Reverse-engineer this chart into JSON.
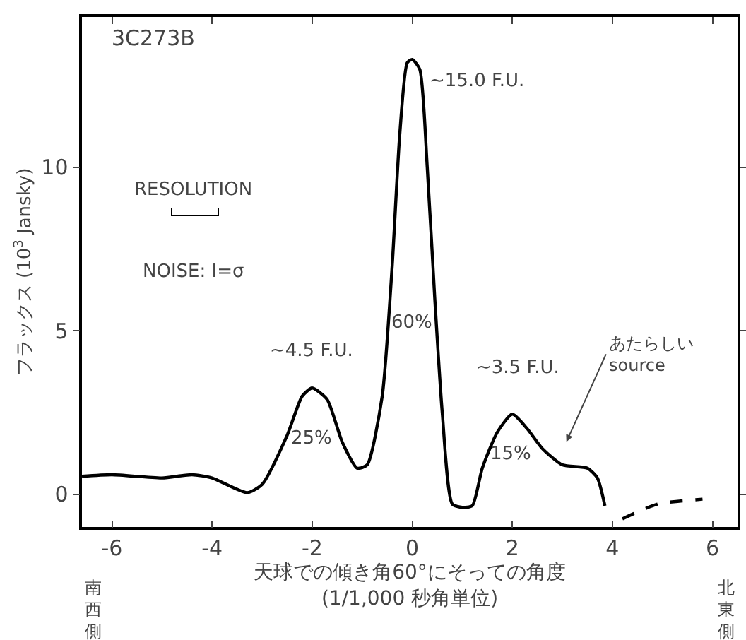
{
  "chart_data": {
    "type": "line",
    "title": "3C273B",
    "xlabel": "天球での傾き角60°にそっての角度\n(1/1,000 秒角単位)",
    "ylabel": "フラックス (10$^{3}$ Jansky)",
    "series": [
      {
        "color": "#000000",
        "line_style": "solid",
        "x": [
          -6.6,
          -6,
          -5,
          -4.4,
          -4,
          -3.3,
          -3,
          -2.5,
          -2.2,
          -2,
          -1.7,
          -1.4,
          -1.1,
          -0.9,
          -0.6,
          -0.4,
          -0.25,
          -0.1,
          0,
          0.15,
          0.3,
          0.45,
          0.6,
          0.8,
          1.0,
          1.2,
          1.4,
          1.7,
          2.0,
          2.3,
          2.6,
          3.0,
          3.5,
          3.7,
          3.85
        ],
        "values": [
          0.55,
          0.6,
          0.5,
          0.6,
          0.5,
          0.05,
          0.3,
          1.8,
          3.0,
          3.25,
          2.9,
          1.6,
          0.8,
          0.9,
          3,
          7,
          11,
          13.2,
          13.3,
          13.0,
          10,
          6,
          2.5,
          -0.3,
          -0.4,
          -0.35,
          0.8,
          1.9,
          2.45,
          2.0,
          1.4,
          0.9,
          0.8,
          0.5,
          -0.35
        ]
      },
      {
        "color": "#000000",
        "line_style": "dashed",
        "x": [
          4.2,
          4.9,
          5.8
        ],
        "values": [
          -0.75,
          -0.3,
          -0.15
        ]
      }
    ],
    "xlim": [
      -6.6,
      6.5
    ],
    "ylim": [
      -1,
      14.6
    ],
    "xticks": [
      -6,
      -4,
      -2,
      0,
      2,
      4,
      6
    ],
    "yticks": [
      0,
      5,
      10
    ],
    "grid": false,
    "annotations": [
      "~15.0 F.U.",
      "~4.5 F.U.",
      "~3.5 F.U.",
      "60%",
      "25%",
      "15%",
      "あたらしい\nsource",
      "RESOLUTION",
      "NOISE: I=σ",
      "南西側",
      "北東側"
    ]
  }
}
